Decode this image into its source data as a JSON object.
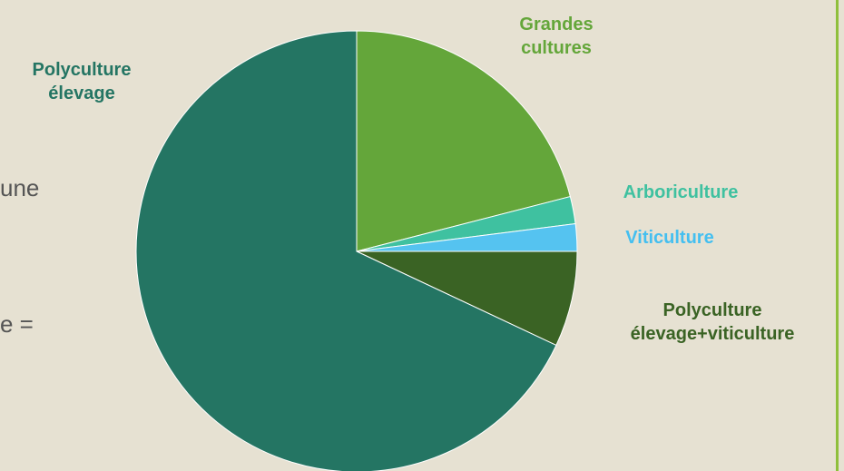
{
  "side_text": [
    "une",
    "e ="
  ],
  "chart_data": {
    "type": "pie",
    "categories": [
      "Grandes cultures",
      "Arboriculture",
      "Viticulture",
      "Polyculture élevage+viticulture",
      "Polyculture élevage"
    ],
    "values": [
      21,
      2,
      2,
      7,
      68
    ],
    "colors": [
      "#64a63a",
      "#3fc1a0",
      "#55c3f0",
      "#3a6324",
      "#247563"
    ],
    "label_colors": [
      "#64a63a",
      "#3fc1a0",
      "#44bff0",
      "#3a6324",
      "#247563"
    ]
  }
}
